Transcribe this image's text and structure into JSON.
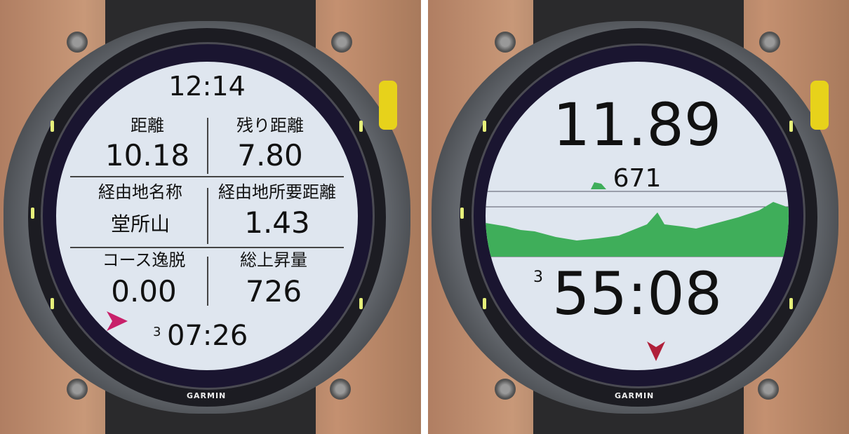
{
  "brand": "GARMIN",
  "left_watch": {
    "time": "12:14",
    "fields": [
      {
        "label": "距離",
        "value": "10.18"
      },
      {
        "label": "残り距離",
        "value": "7.80"
      },
      {
        "label": "経由地名称",
        "value": "堂所山"
      },
      {
        "label": "経由地所要距離",
        "value": "1.43"
      },
      {
        "label": "コース逸脱",
        "value": "0.00"
      },
      {
        "label": "総上昇量",
        "value": "726"
      }
    ],
    "timer_prefix": "3",
    "timer": "07:26",
    "pointer_color": "#c8206a"
  },
  "right_watch": {
    "distance": "11.89",
    "elevation": "671",
    "timer_prefix": "3",
    "timer": "55:08",
    "profile_color": "#3fae5a",
    "pointer_color": "#b0203a"
  }
}
